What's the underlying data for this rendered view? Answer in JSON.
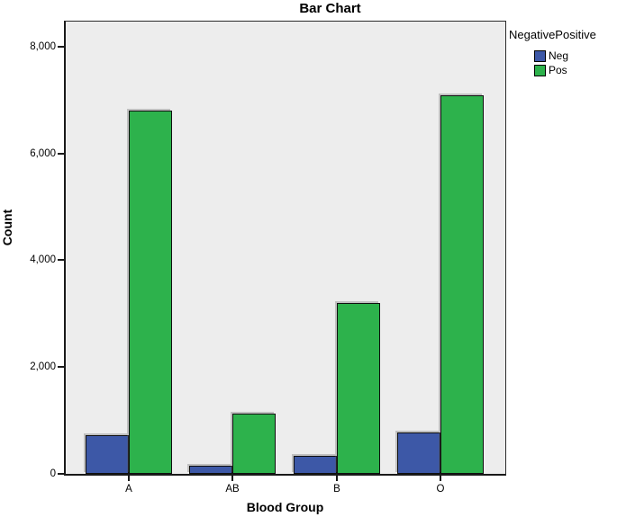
{
  "chart_data": {
    "type": "bar",
    "title": "Bar Chart",
    "xlabel": "Blood Group",
    "ylabel": "Count",
    "categories": [
      "A",
      "AB",
      "B",
      "O"
    ],
    "series": [
      {
        "name": "Neg",
        "color": "#3D58A7",
        "values": [
          730,
          150,
          340,
          770
        ]
      },
      {
        "name": "Pos",
        "color": "#2DB24C",
        "values": [
          6800,
          1130,
          3200,
          7090
        ]
      }
    ],
    "ylim": [
      0,
      8470
    ],
    "yticks": [
      0,
      2000,
      4000,
      6000,
      8000
    ],
    "ytick_labels": [
      "0",
      "2,000",
      "4,000",
      "6,000",
      "8,000"
    ],
    "legend_title": "NegativePositive",
    "legend_position": "top-right",
    "grid": false,
    "plot_bg": "#EDEDED",
    "bar_border": "#101010",
    "axis_color": "#1A1A1A"
  }
}
